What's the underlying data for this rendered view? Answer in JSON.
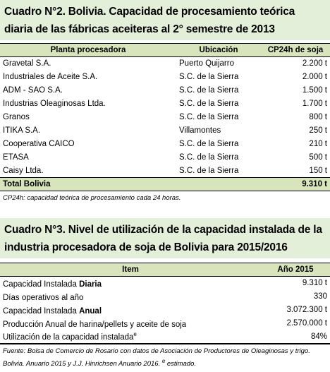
{
  "table1": {
    "title": "Cuadro N°2. Bolivia. Capacidad de procesamiento teórica diaria de las fábricas aceiteras al 2° semestre de 2013",
    "headers": [
      "Planta procesadora",
      "Ubicación",
      "CP24h de soja"
    ],
    "rows": [
      [
        "Gravetal S.A.",
        "Puerto Quijarro",
        "2.200 t"
      ],
      [
        "Industriales de Aceite S.A.",
        "S.C. de la Sierra",
        "2.000 t"
      ],
      [
        "ADM - SAO S.A.",
        "S.C. de la Sierra",
        "1.500 t"
      ],
      [
        "Industrias Oleaginosas Ltda.",
        "S.C. de la Sierra",
        "1.700 t"
      ],
      [
        "Granos",
        "S.C. de la Sierra",
        "800 t"
      ],
      [
        "ITIKA S.A.",
        "Villamontes",
        "250 t"
      ],
      [
        "Cooperativa CAICO",
        "S.C. de la Sierra",
        "210 t"
      ],
      [
        "ETASA",
        "S.C. de la Sierra",
        "500 t"
      ],
      [
        "Caisy Ltda.",
        "S.C. de la Sierra",
        "150 t"
      ]
    ],
    "total_label": "Total Bolivia",
    "total_value": "9.310 t",
    "note": "CP24h: capacidad teórica de procesamiento cada 24 horas."
  },
  "table2": {
    "title": "Cuadro N°3. Nivel de utilización de la capacidad instalada de la industria procesadora de soja de Bolivia para 2015/2016",
    "headers": [
      "Item",
      "Año 2015"
    ],
    "rows": [
      {
        "pre": "Capacidad Instalada ",
        "bold": "Diaria",
        "post": "",
        "sup": "",
        "value": "9.310 t"
      },
      {
        "pre": "Días operativos al año",
        "bold": "",
        "post": "",
        "sup": "",
        "value": "330"
      },
      {
        "pre": "Capacidad Instalada ",
        "bold": "Anual",
        "post": "",
        "sup": "",
        "value": "3.072.300 t"
      },
      {
        "pre": "Producción Anual de harina/pellets y aceite de soja",
        "bold": "",
        "post": "",
        "sup": "",
        "value": "2.570.000 t"
      },
      {
        "pre": "Utilización de la capacidad instalada",
        "bold": "",
        "post": "",
        "sup": "e",
        "value": "84%"
      }
    ],
    "source_main": "Fuente: Bolsa de Comercio de Rosario con datos de Asociación de Productores de Oleaginosas y trigo. Bolivia. Anuario 2015 y J.J. Hinrichsen Anuario 2016. ",
    "source_sup": "e",
    "source_end": " estimado."
  },
  "colors": {
    "title_bg": "#e4efd9",
    "header_bg": "#d8e4bc"
  }
}
